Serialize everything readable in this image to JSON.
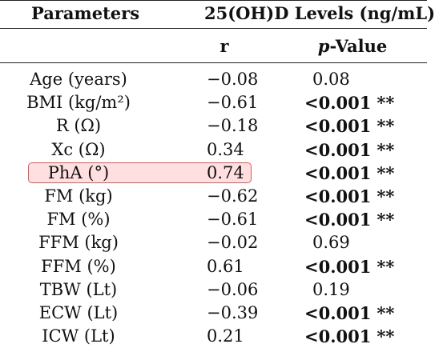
{
  "table": {
    "header_parameters": "Parameters",
    "header_levels": "25(OH)D Levels (ng/mL)",
    "header_r": "r",
    "header_p_prefix": "p",
    "header_p_suffix": "-Value"
  },
  "rows": [
    {
      "param": "Age (years)",
      "r": "−0.08",
      "p": "0.08",
      "significant": false,
      "stars": ""
    },
    {
      "param": "BMI (kg/m²)",
      "r": "−0.61",
      "p": "<0.001",
      "significant": true,
      "stars": "**"
    },
    {
      "param": "R (Ω)",
      "r": "−0.18",
      "p": "<0.001",
      "significant": true,
      "stars": "**"
    },
    {
      "param": "Xc (Ω)",
      "r": "0.34",
      "p": "<0.001",
      "significant": true,
      "stars": "**"
    },
    {
      "param": "PhA (°)",
      "r": "0.74",
      "p": "<0.001",
      "significant": true,
      "stars": "**",
      "highlighted": true
    },
    {
      "param": "FM (kg)",
      "r": "−0.62",
      "p": "<0.001",
      "significant": true,
      "stars": "**"
    },
    {
      "param": "FM (%)",
      "r": "−0.61",
      "p": "<0.001",
      "significant": true,
      "stars": "**"
    },
    {
      "param": "FFM (kg)",
      "r": "−0.02",
      "p": "0.69",
      "significant": false,
      "stars": ""
    },
    {
      "param": "FFM (%)",
      "r": "0.61",
      "p": "<0.001",
      "significant": true,
      "stars": "**"
    },
    {
      "param": "TBW (Lt)",
      "r": "−0.06",
      "p": "0.19",
      "significant": false,
      "stars": ""
    },
    {
      "param": "ECW (Lt)",
      "r": "−0.39",
      "p": "<0.001",
      "significant": true,
      "stars": "**"
    },
    {
      "param": "ICW (Lt)",
      "r": "0.21",
      "p": "<0.001",
      "significant": true,
      "stars": "**"
    }
  ],
  "colors": {
    "highlight_border": "#e25555",
    "highlight_fill": "#ffd2d2"
  }
}
